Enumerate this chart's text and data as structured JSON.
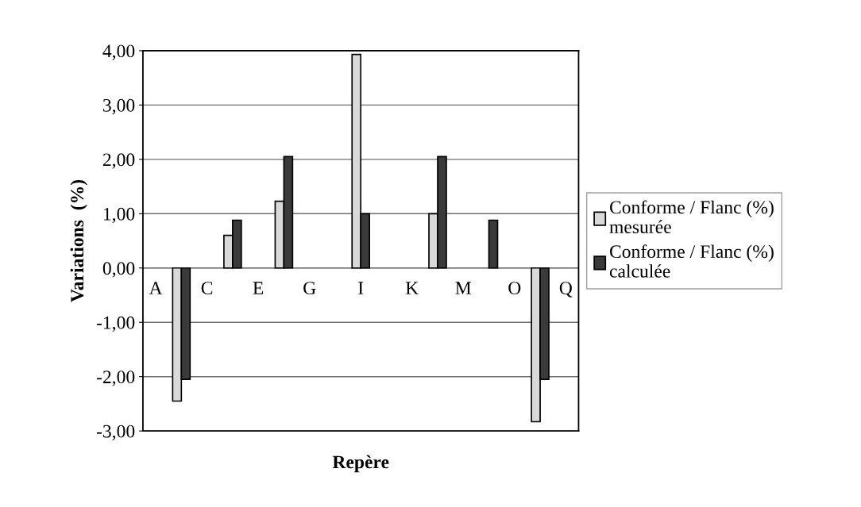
{
  "chart_data": {
    "type": "bar",
    "xlabel": "Repère",
    "ylabel": "Variations  (%)",
    "categories": [
      "A",
      null,
      "C",
      null,
      "E",
      null,
      "G",
      null,
      "I",
      null,
      "K",
      null,
      "M",
      null,
      "O",
      null,
      "Q"
    ],
    "series": [
      {
        "name": "Conforme / Flanc (%) mesurée",
        "color": "#d9d9d9",
        "values": [
          null,
          -2.45,
          null,
          0.6,
          null,
          1.23,
          null,
          null,
          3.93,
          null,
          null,
          1.0,
          null,
          null,
          null,
          -2.83,
          null
        ]
      },
      {
        "name": "Conforme / Flanc (%) calculée",
        "color": "#3a3a3a",
        "values": [
          null,
          -2.05,
          null,
          0.88,
          null,
          2.05,
          null,
          null,
          1.0,
          null,
          null,
          2.05,
          null,
          0.88,
          null,
          -2.05,
          null
        ]
      }
    ],
    "ylim": [
      -3,
      4
    ],
    "yticks": [
      {
        "value": -3,
        "label": "-3,00"
      },
      {
        "value": -2,
        "label": "-2,00"
      },
      {
        "value": -1,
        "label": "-1,00"
      },
      {
        "value": 0,
        "label": "0,00"
      },
      {
        "value": 1,
        "label": "1,00"
      },
      {
        "value": 2,
        "label": "2,00"
      },
      {
        "value": 3,
        "label": "3,00"
      },
      {
        "value": 4,
        "label": "4,00"
      }
    ],
    "grid": "y",
    "legend": "right"
  }
}
